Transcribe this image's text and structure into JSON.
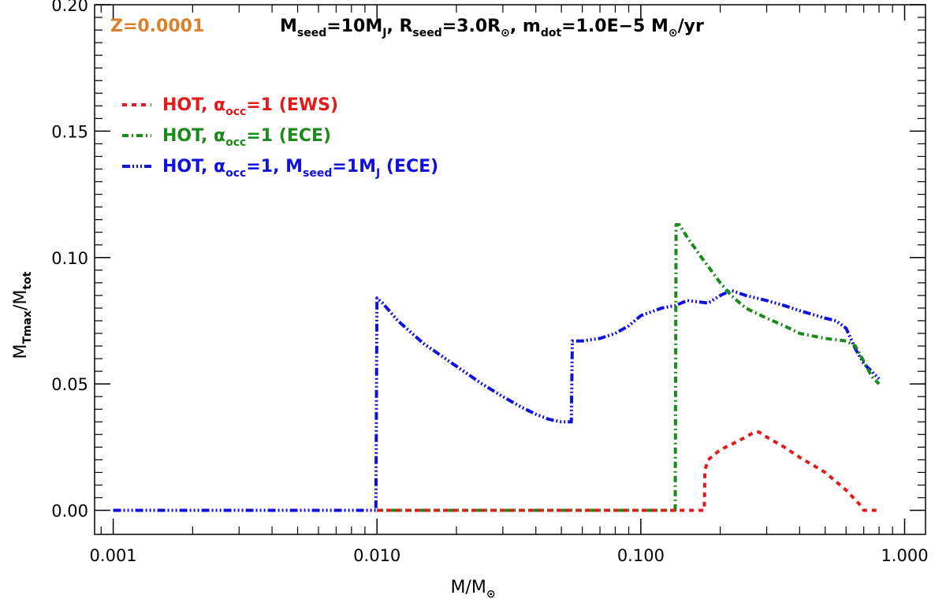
{
  "chart_data": {
    "type": "line",
    "xscale": "log",
    "xlim": [
      0.00085,
      1.2
    ],
    "ylim": [
      -0.0095,
      0.2
    ],
    "xticks": [
      0.001,
      0.01,
      0.1,
      1.0
    ],
    "xtick_labels": [
      "0.001",
      "0.010",
      "0.100",
      "1.000"
    ],
    "yticks": [
      0.0,
      0.05,
      0.1,
      0.15,
      0.2
    ],
    "ytick_labels": [
      "0.00",
      "0.05",
      "0.10",
      "0.15",
      "0.20"
    ],
    "xlabel": {
      "main": "M/M",
      "sub": "⊙"
    },
    "ylabel": {
      "a": "M",
      "a_sub": "Tmax",
      "b": "/M",
      "b_sub": "tot"
    },
    "metallicity_label": "Z=0.0001",
    "metallicity_color": "#d9822b",
    "params": {
      "m": "M",
      "m_sub": "seed",
      "m_val": "=10M",
      "m_val_sub": "J",
      "r": ", R",
      "r_sub": "seed",
      "r_val": "=3.0R",
      "r_val_sub": "⊙",
      "md": ", m",
      "md_sub": "dot",
      "md_val": "=1.0E−5 M",
      "md_val_sub": "⊙",
      "md_tail": "/yr"
    },
    "series": [
      {
        "name": "HOT, α_occ=1 (EWS)",
        "legend": {
          "a": "HOT, ",
          "alpha": "α",
          "alpha_sub": "occ",
          "b": "=1 (EWS)"
        },
        "color": "#e31a1c",
        "dash": "6,6",
        "x": [
          0.01,
          0.03,
          0.1,
          0.13,
          0.14,
          0.16,
          0.174,
          0.175,
          0.18,
          0.19,
          0.2,
          0.22,
          0.25,
          0.27,
          0.28,
          0.3,
          0.35,
          0.4,
          0.5,
          0.6,
          0.68,
          0.7,
          0.8
        ],
        "y": [
          0.0,
          0.0,
          0.0,
          0.0,
          0.0,
          0.0,
          0.0,
          0.016,
          0.02,
          0.022,
          0.024,
          0.026,
          0.029,
          0.031,
          0.031,
          0.029,
          0.025,
          0.021,
          0.015,
          0.008,
          0.002,
          0.0,
          0.0
        ]
      },
      {
        "name": "HOT, α_occ=1 (ECE)",
        "legend": {
          "a": "HOT, ",
          "alpha": "α",
          "alpha_sub": "occ",
          "b": "=1 (ECE)"
        },
        "color": "#1a8a1a",
        "dash": "8,4,2,4",
        "x": [
          0.01,
          0.05,
          0.1,
          0.135,
          0.136,
          0.14,
          0.15,
          0.17,
          0.2,
          0.22,
          0.25,
          0.3,
          0.35,
          0.4,
          0.5,
          0.6,
          0.65,
          0.7,
          0.75,
          0.8
        ],
        "y": [
          0.0,
          0.0,
          0.0,
          0.0,
          0.113,
          0.113,
          0.108,
          0.1,
          0.09,
          0.085,
          0.08,
          0.076,
          0.073,
          0.07,
          0.068,
          0.067,
          0.065,
          0.059,
          0.053,
          0.05
        ]
      },
      {
        "name": "HOT, α_occ=1, M_seed=1M_J (ECE)",
        "legend": {
          "a": "HOT, ",
          "alpha": "α",
          "alpha_sub": "occ",
          "b": "=1, M",
          "b_sub": "seed",
          "c": "=1M",
          "c_sub": "J",
          "d": " (ECE)"
        },
        "color": "#1010e0",
        "dash": "10,3,2,3,2,3,2,3",
        "x": [
          0.001,
          0.005,
          0.0099,
          0.01,
          0.0105,
          0.012,
          0.015,
          0.02,
          0.025,
          0.03,
          0.035,
          0.04,
          0.045,
          0.05,
          0.0545,
          0.055,
          0.06,
          0.07,
          0.08,
          0.09,
          0.1,
          0.12,
          0.135,
          0.15,
          0.18,
          0.2,
          0.22,
          0.25,
          0.3,
          0.35,
          0.4,
          0.5,
          0.55,
          0.6,
          0.65,
          0.7,
          0.75,
          0.8
        ],
        "y": [
          0.0,
          0.0,
          0.0,
          0.084,
          0.082,
          0.075,
          0.066,
          0.057,
          0.05,
          0.045,
          0.041,
          0.038,
          0.036,
          0.035,
          0.035,
          0.067,
          0.067,
          0.068,
          0.07,
          0.073,
          0.077,
          0.08,
          0.081,
          0.083,
          0.082,
          0.085,
          0.087,
          0.085,
          0.083,
          0.081,
          0.079,
          0.076,
          0.075,
          0.072,
          0.064,
          0.058,
          0.055,
          0.052
        ]
      }
    ],
    "grid": false,
    "legend_position": "top-left"
  }
}
